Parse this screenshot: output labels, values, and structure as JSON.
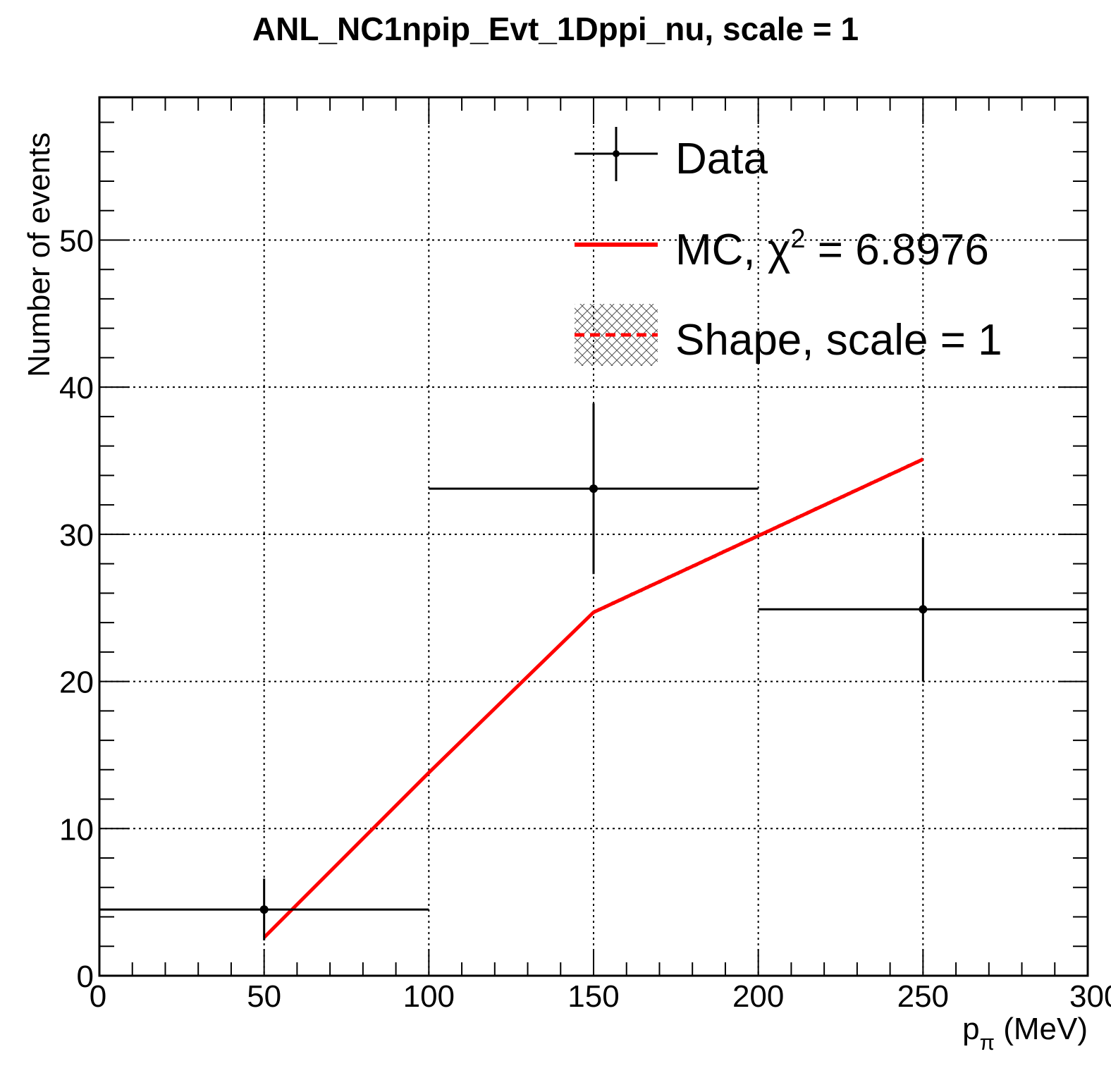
{
  "chart_data": {
    "type": "line",
    "title": "ANL_NC1npip_Evt_1Dppi_nu, scale = 1",
    "xlabel": {
      "main": "p",
      "sub": "π",
      "unit": "(MeV)"
    },
    "ylabel": "Number of events",
    "xlim": [
      0,
      300
    ],
    "ylim": [
      0,
      59.7
    ],
    "x_ticks": [
      0,
      50,
      100,
      150,
      200,
      250,
      300
    ],
    "y_ticks": [
      0,
      10,
      20,
      30,
      40,
      50
    ],
    "x_tick_labels": [
      "0",
      "50",
      "100",
      "150",
      "200",
      "250",
      "300"
    ],
    "y_tick_labels": [
      "0",
      "10",
      "20",
      "30",
      "40",
      "50"
    ],
    "grid": true,
    "legend_position": "top-right",
    "series": [
      {
        "name": "Data",
        "kind": "errorbar",
        "color": "#000000",
        "points": [
          {
            "x": 50,
            "y": 4.5,
            "xlow": 0,
            "xhigh": 100,
            "yerr": 2.1
          },
          {
            "x": 150,
            "y": 33.1,
            "xlow": 100,
            "xhigh": 200,
            "yerr": 5.8
          },
          {
            "x": 250,
            "y": 24.9,
            "xlow": 200,
            "xhigh": 300,
            "yerr": 4.9
          }
        ]
      },
      {
        "name": "MC",
        "kind": "line",
        "color": "#ff0000",
        "x": [
          50,
          100,
          150,
          200,
          250
        ],
        "y": [
          2.6,
          13.8,
          24.7,
          29.9,
          35.1
        ]
      },
      {
        "name": "Shape, scale = 1",
        "kind": "band",
        "color": "#ff0000",
        "x": [
          50,
          100,
          150,
          200,
          250
        ],
        "y": [
          2.6,
          13.8,
          24.7,
          29.9,
          35.1
        ]
      }
    ],
    "legend": [
      {
        "prefix": "Data",
        "sup": "",
        "suffix": "",
        "style": "errorbar"
      },
      {
        "prefix": "MC, χ",
        "sup": "2",
        "suffix": " = 6.8976",
        "style": "line"
      },
      {
        "prefix": "Shape, scale = 1",
        "sup": "",
        "suffix": "",
        "style": "band"
      }
    ]
  }
}
